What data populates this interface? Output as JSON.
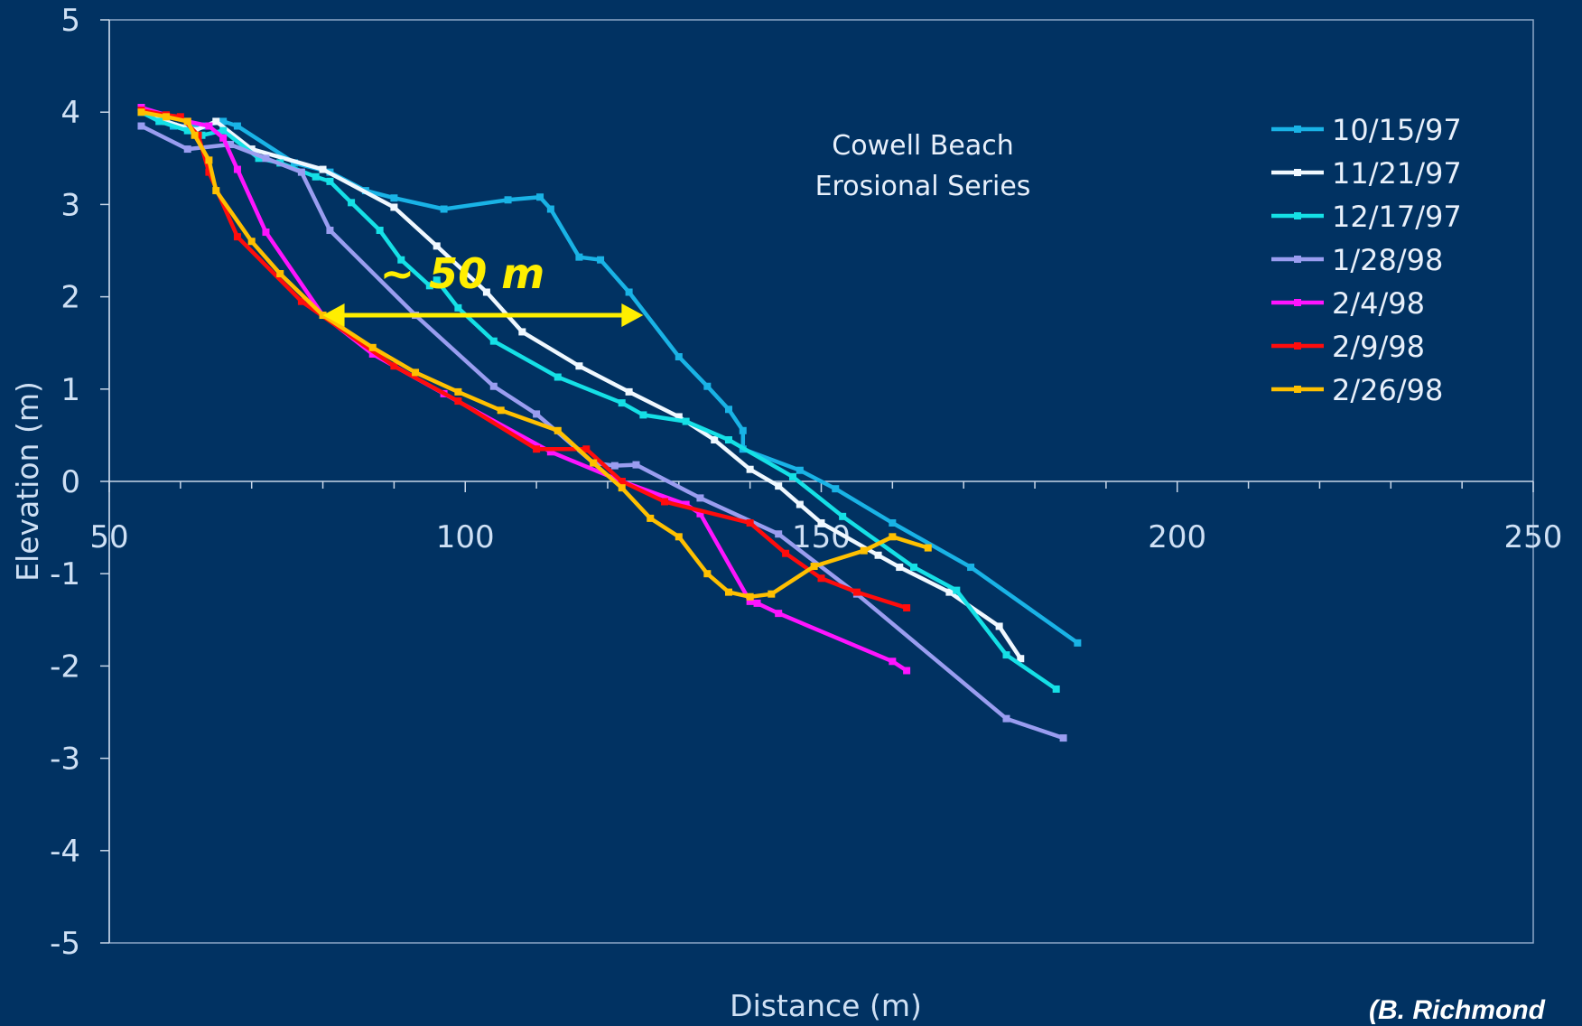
{
  "chart_data": {
    "type": "line",
    "title": "Cowell Beach\nErosional Series",
    "xlabel": "Distance (m)",
    "ylabel": "Elevation (m)",
    "xlim": [
      50,
      250
    ],
    "ylim": [
      -5,
      5
    ],
    "xticks": [
      50,
      100,
      150,
      200,
      250
    ],
    "yticks": [
      -5,
      -4,
      -3,
      -2,
      -1,
      0,
      1,
      2,
      3,
      4,
      5
    ],
    "x_minor_step": 10,
    "legend_position": "top-right",
    "series": [
      {
        "name": "10/15/97",
        "color": "#19b3e6",
        "points": [
          [
            54.5,
            4.0
          ],
          [
            59,
            3.85
          ],
          [
            63,
            3.85
          ],
          [
            66,
            3.9
          ],
          [
            68,
            3.85
          ],
          [
            76,
            3.45
          ],
          [
            81,
            3.35
          ],
          [
            86,
            3.15
          ],
          [
            90,
            3.07
          ],
          [
            97,
            2.95
          ],
          [
            106,
            3.05
          ],
          [
            110.5,
            3.08
          ],
          [
            112,
            2.95
          ],
          [
            116,
            2.43
          ],
          [
            119,
            2.4
          ],
          [
            123,
            2.05
          ],
          [
            130,
            1.35
          ],
          [
            134,
            1.03
          ],
          [
            137,
            0.78
          ],
          [
            139,
            0.55
          ],
          [
            139,
            0.35
          ],
          [
            147,
            0.12
          ],
          [
            152,
            -0.08
          ],
          [
            160,
            -0.45
          ],
          [
            171,
            -0.93
          ],
          [
            186,
            -1.75
          ]
        ]
      },
      {
        "name": "11/21/97",
        "color": "#f0f8ff",
        "points": [
          [
            54.5,
            4.05
          ],
          [
            58,
            3.9
          ],
          [
            62,
            3.8
          ],
          [
            65,
            3.9
          ],
          [
            70,
            3.6
          ],
          [
            80,
            3.38
          ],
          [
            90,
            2.97
          ],
          [
            96,
            2.55
          ],
          [
            103,
            2.05
          ],
          [
            108,
            1.62
          ],
          [
            116,
            1.25
          ],
          [
            123,
            0.97
          ],
          [
            130,
            0.7
          ],
          [
            135,
            0.45
          ],
          [
            140,
            0.13
          ],
          [
            144,
            -0.05
          ],
          [
            147,
            -0.25
          ],
          [
            150,
            -0.45
          ],
          [
            158,
            -0.8
          ],
          [
            161,
            -0.93
          ],
          [
            168,
            -1.2
          ],
          [
            175,
            -1.57
          ],
          [
            178,
            -1.92
          ]
        ]
      },
      {
        "name": "12/17/97",
        "color": "#15e0e6",
        "points": [
          [
            54.5,
            4.0
          ],
          [
            57,
            3.9
          ],
          [
            61,
            3.8
          ],
          [
            63,
            3.75
          ],
          [
            66,
            3.8
          ],
          [
            71,
            3.5
          ],
          [
            74,
            3.45
          ],
          [
            79,
            3.3
          ],
          [
            81,
            3.25
          ],
          [
            84,
            3.02
          ],
          [
            88,
            2.72
          ],
          [
            91,
            2.4
          ],
          [
            95,
            2.12
          ],
          [
            96,
            2.18
          ],
          [
            99,
            1.88
          ],
          [
            104,
            1.52
          ],
          [
            113,
            1.13
          ],
          [
            122,
            0.85
          ],
          [
            125,
            0.72
          ],
          [
            131,
            0.65
          ],
          [
            137,
            0.45
          ],
          [
            146,
            0.05
          ],
          [
            153,
            -0.38
          ],
          [
            163,
            -0.93
          ],
          [
            169,
            -1.18
          ],
          [
            176,
            -1.88
          ],
          [
            183,
            -2.25
          ]
        ]
      },
      {
        "name": "1/28/98",
        "color": "#9a9df0",
        "points": [
          [
            54.5,
            3.85
          ],
          [
            61,
            3.6
          ],
          [
            67,
            3.65
          ],
          [
            72,
            3.5
          ],
          [
            77,
            3.35
          ],
          [
            81,
            2.72
          ],
          [
            93,
            1.8
          ],
          [
            104,
            1.03
          ],
          [
            110,
            0.73
          ],
          [
            118,
            0.2
          ],
          [
            121,
            0.17
          ],
          [
            124,
            0.18
          ],
          [
            133,
            -0.18
          ],
          [
            144,
            -0.57
          ],
          [
            155,
            -1.22
          ],
          [
            176,
            -2.57
          ],
          [
            184,
            -2.78
          ]
        ]
      },
      {
        "name": "2/4/98",
        "color": "#ff14ff",
        "points": [
          [
            54.5,
            4.05
          ],
          [
            61,
            3.9
          ],
          [
            64,
            3.85
          ],
          [
            66,
            3.72
          ],
          [
            68,
            3.38
          ],
          [
            72,
            2.7
          ],
          [
            80,
            1.8
          ],
          [
            87,
            1.38
          ],
          [
            97,
            0.95
          ],
          [
            112,
            0.32
          ],
          [
            122,
            0.0
          ],
          [
            131,
            -0.25
          ],
          [
            133,
            -0.35
          ],
          [
            140,
            -1.3
          ],
          [
            141,
            -1.32
          ],
          [
            144,
            -1.43
          ],
          [
            160,
            -1.95
          ],
          [
            162,
            -2.05
          ]
        ]
      },
      {
        "name": "2/9/98",
        "color": "#ff0c0c",
        "points": [
          [
            54.5,
            4.02
          ],
          [
            58,
            3.97
          ],
          [
            60,
            3.95
          ],
          [
            62.5,
            3.75
          ],
          [
            64,
            3.35
          ],
          [
            68,
            2.65
          ],
          [
            77,
            1.95
          ],
          [
            90,
            1.25
          ],
          [
            99,
            0.87
          ],
          [
            110,
            0.35
          ],
          [
            117,
            0.35
          ],
          [
            122,
            0.0
          ],
          [
            128,
            -0.22
          ],
          [
            140,
            -0.45
          ],
          [
            145,
            -0.78
          ],
          [
            150,
            -1.05
          ],
          [
            155,
            -1.2
          ],
          [
            162,
            -1.37
          ]
        ]
      },
      {
        "name": "2/26/98",
        "color": "#ffc000",
        "points": [
          [
            54.5,
            4.0
          ],
          [
            58,
            3.95
          ],
          [
            61,
            3.9
          ],
          [
            62,
            3.75
          ],
          [
            64,
            3.48
          ],
          [
            65,
            3.15
          ],
          [
            70,
            2.6
          ],
          [
            74,
            2.25
          ],
          [
            80,
            1.8
          ],
          [
            87,
            1.45
          ],
          [
            93,
            1.18
          ],
          [
            99,
            0.97
          ],
          [
            105,
            0.77
          ],
          [
            113,
            0.55
          ],
          [
            118,
            0.2
          ],
          [
            122,
            -0.07
          ],
          [
            126,
            -0.4
          ],
          [
            130,
            -0.6
          ],
          [
            134,
            -1.0
          ],
          [
            137,
            -1.2
          ],
          [
            140,
            -1.25
          ],
          [
            143,
            -1.22
          ],
          [
            149,
            -0.92
          ],
          [
            156,
            -0.75
          ],
          [
            160,
            -0.6
          ],
          [
            165,
            -0.72
          ]
        ]
      }
    ],
    "annotations": [
      {
        "label": "~ 50 m",
        "color": "#ffee00",
        "arrow_from": [
          80,
          1.8
        ],
        "arrow_to": [
          125,
          1.8
        ],
        "text_at": [
          88,
          2.25
        ]
      }
    ]
  },
  "credit": "(B. Richmond"
}
